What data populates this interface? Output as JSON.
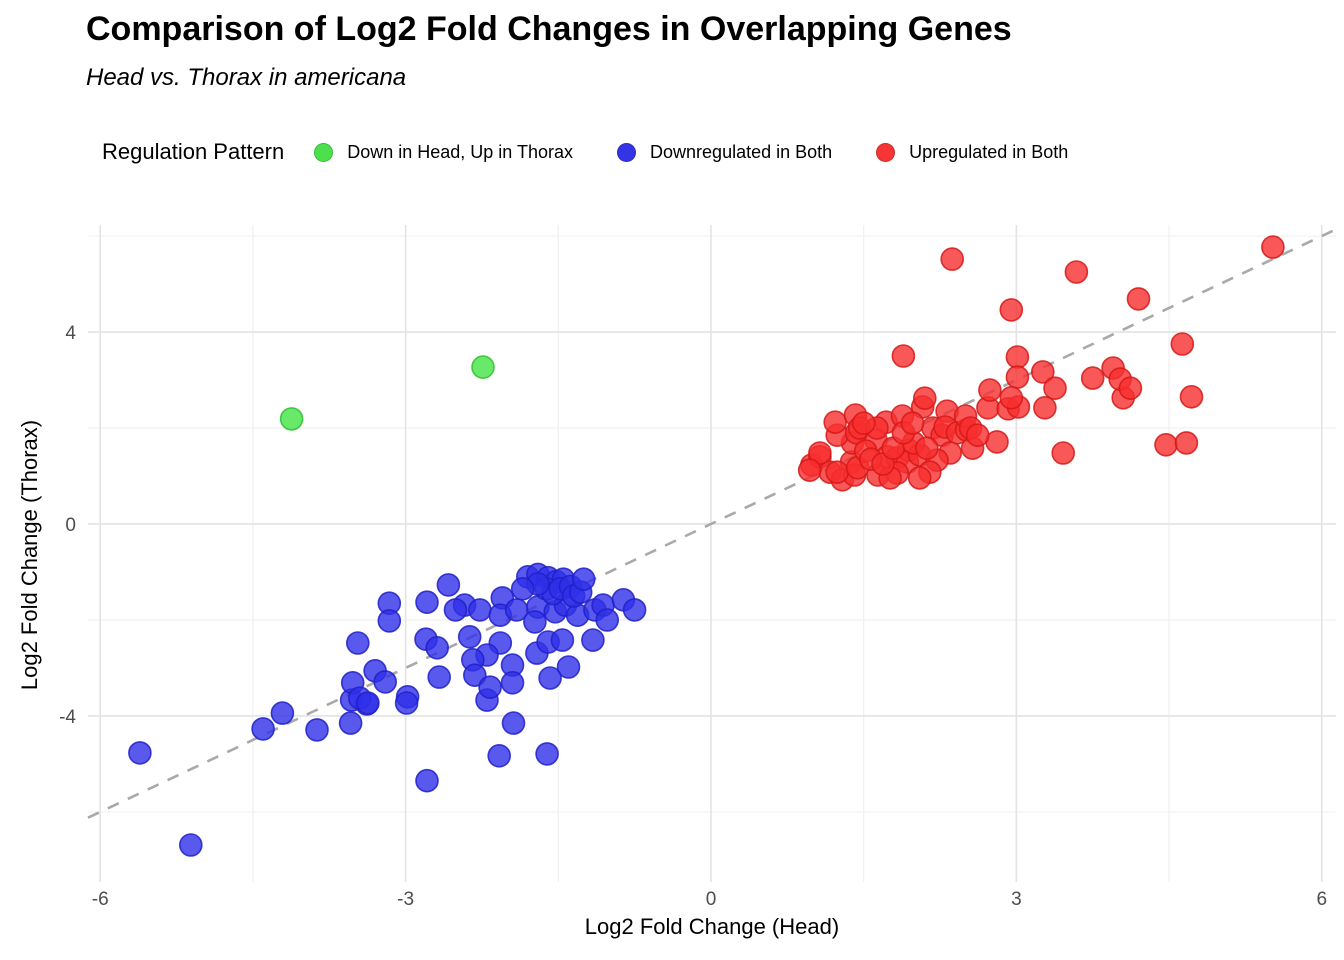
{
  "header": {
    "title": "Comparison of Log2 Fold Changes in Overlapping Genes",
    "subtitle": "Head vs. Thorax in americana"
  },
  "legend": {
    "title": "Regulation Pattern",
    "items": [
      {
        "label": "Down in Head, Up in Thorax",
        "color": "#4ce14c"
      },
      {
        "label": "Downregulated in Both",
        "color": "#3434e6"
      },
      {
        "label": "Upregulated in Both",
        "color": "#f73535"
      }
    ]
  },
  "chart_data": {
    "type": "scatter",
    "title": "Comparison of Log2 Fold Changes in Overlapping Genes",
    "subtitle": "Head vs. Thorax in americana",
    "xlabel": "Log2 Fold Change (Head)",
    "ylabel": "Log2 Fold Change (Thorax)",
    "xlim": [
      -6.12,
      6.14
    ],
    "ylim": [
      -7.46,
      6.23
    ],
    "x_ticks": [
      -6,
      -3,
      0,
      3,
      6
    ],
    "y_ticks": [
      -4,
      0,
      4
    ],
    "x_minor_ticks": [
      -4.5,
      -1.5,
      1.5,
      4.5
    ],
    "y_minor_ticks": [
      -6,
      -2,
      2,
      6
    ],
    "grid": "major+minor",
    "grid_major_color": "#e3e3e3",
    "grid_minor_color": "#f0f0f0",
    "legend_position": "top",
    "reference_line": {
      "type": "identity y=x",
      "style": "dashed",
      "color": "#a9a9a9"
    },
    "series": [
      {
        "name": "Down in Head, Up in Thorax",
        "color": "#44e344",
        "stroke": "#2fbf2f",
        "points": [
          [
            -4.12,
            2.19
          ],
          [
            -2.24,
            3.27
          ]
        ]
      },
      {
        "name": "Downregulated in Both",
        "color": "#3030e8",
        "stroke": "#2020c8",
        "points": [
          [
            -5.61,
            -4.77
          ],
          [
            -5.11,
            -6.69
          ],
          [
            -4.4,
            -4.27
          ],
          [
            -4.21,
            -3.94
          ],
          [
            -3.87,
            -4.29
          ],
          [
            -3.54,
            -4.15
          ],
          [
            -3.53,
            -3.67
          ],
          [
            -3.38,
            -3.75
          ],
          [
            -3.16,
            -1.65
          ],
          [
            -3.16,
            -2.02
          ],
          [
            -2.79,
            -1.63
          ],
          [
            -3.47,
            -2.48
          ],
          [
            -2.8,
            -2.4
          ],
          [
            -2.69,
            -2.58
          ],
          [
            -3.3,
            -3.06
          ],
          [
            -3.52,
            -3.31
          ],
          [
            -3.2,
            -3.29
          ],
          [
            -3.45,
            -3.63
          ],
          [
            -3.37,
            -3.73
          ],
          [
            -2.98,
            -3.6
          ],
          [
            -2.67,
            -3.19
          ],
          [
            -2.99,
            -3.73
          ],
          [
            -2.2,
            -3.67
          ],
          [
            -1.94,
            -4.15
          ],
          [
            -2.08,
            -4.83
          ],
          [
            -1.61,
            -4.79
          ],
          [
            -2.79,
            -5.35
          ],
          [
            -2.42,
            -1.69
          ],
          [
            -2.27,
            -1.79
          ],
          [
            -2.05,
            -1.54
          ],
          [
            -2.07,
            -1.9
          ],
          [
            -1.91,
            -1.79
          ],
          [
            -1.7,
            -1.73
          ],
          [
            -1.73,
            -2.04
          ],
          [
            -1.53,
            -1.83
          ],
          [
            -1.43,
            -1.69
          ],
          [
            -1.31,
            -1.9
          ],
          [
            -1.14,
            -1.79
          ],
          [
            -1.06,
            -1.69
          ],
          [
            -1.02,
            -2.0
          ],
          [
            -0.86,
            -1.58
          ],
          [
            -0.75,
            -1.79
          ],
          [
            -2.37,
            -2.35
          ],
          [
            -2.07,
            -2.48
          ],
          [
            -2.2,
            -2.73
          ],
          [
            -2.34,
            -2.83
          ],
          [
            -2.32,
            -3.15
          ],
          [
            -2.17,
            -3.4
          ],
          [
            -1.95,
            -2.94
          ],
          [
            -1.95,
            -3.31
          ],
          [
            -1.71,
            -2.69
          ],
          [
            -1.6,
            -2.46
          ],
          [
            -1.46,
            -2.42
          ],
          [
            -1.4,
            -2.98
          ],
          [
            -1.58,
            -3.21
          ],
          [
            -1.16,
            -2.42
          ],
          [
            -1.8,
            -1.1
          ],
          [
            -1.7,
            -1.05
          ],
          [
            -1.6,
            -1.12
          ],
          [
            -1.52,
            -1.2
          ],
          [
            -1.45,
            -1.15
          ],
          [
            -1.62,
            -1.35
          ],
          [
            -1.55,
            -1.45
          ],
          [
            -1.48,
            -1.35
          ],
          [
            -1.38,
            -1.3
          ],
          [
            -1.35,
            -1.5
          ],
          [
            -1.28,
            -1.42
          ],
          [
            -1.7,
            -1.25
          ],
          [
            -1.85,
            -1.35
          ],
          [
            -1.25,
            -1.15
          ],
          [
            -2.58,
            -1.27
          ],
          [
            -2.51,
            -1.79
          ]
        ]
      },
      {
        "name": "Upregulated in Both",
        "color": "#f72e2e",
        "stroke": "#d51818",
        "points": [
          [
            0.99,
            1.23
          ],
          [
            1.07,
            1.4
          ],
          [
            1.17,
            1.08
          ],
          [
            1.29,
            0.92
          ],
          [
            1.38,
            1.29
          ],
          [
            1.41,
            1.02
          ],
          [
            1.39,
            1.69
          ],
          [
            1.24,
            1.85
          ],
          [
            1.43,
            1.9
          ],
          [
            1.22,
            2.12
          ],
          [
            1.42,
            2.27
          ],
          [
            1.46,
            2.0
          ],
          [
            1.72,
            2.12
          ],
          [
            1.88,
            2.25
          ],
          [
            2.08,
            2.44
          ],
          [
            2.32,
            2.35
          ],
          [
            1.62,
            1.75
          ],
          [
            1.07,
            1.48
          ],
          [
            0.97,
            1.12
          ],
          [
            1.24,
            1.08
          ],
          [
            1.44,
            1.17
          ],
          [
            1.64,
            1.02
          ],
          [
            1.73,
            1.4
          ],
          [
            1.83,
            1.38
          ],
          [
            1.94,
            1.54
          ],
          [
            1.93,
            1.29
          ],
          [
            2.05,
            1.44
          ],
          [
            2.18,
            2.0
          ],
          [
            2.27,
            1.85
          ],
          [
            2.3,
            2.02
          ],
          [
            2.42,
            1.9
          ],
          [
            2.51,
            1.96
          ],
          [
            2.35,
            1.48
          ],
          [
            2.22,
            1.33
          ],
          [
            2.15,
            1.08
          ],
          [
            2.05,
            0.96
          ],
          [
            1.83,
            1.06
          ],
          [
            1.76,
            0.96
          ],
          [
            1.63,
            2.0
          ],
          [
            2.72,
            2.42
          ],
          [
            2.92,
            2.4
          ],
          [
            3.02,
            2.44
          ],
          [
            3.28,
            2.42
          ],
          [
            4.05,
            2.63
          ],
          [
            2.81,
            1.71
          ],
          [
            2.57,
            1.58
          ],
          [
            3.46,
            1.48
          ],
          [
            2.5,
            2.25
          ],
          [
            2.55,
            2.0
          ],
          [
            2.62,
            1.85
          ],
          [
            2.37,
            5.52
          ],
          [
            3.59,
            5.25
          ],
          [
            2.95,
            4.46
          ],
          [
            4.2,
            4.69
          ],
          [
            1.89,
            3.5
          ],
          [
            3.01,
            3.48
          ],
          [
            3.01,
            3.06
          ],
          [
            3.26,
            3.17
          ],
          [
            3.38,
            2.83
          ],
          [
            3.95,
            3.25
          ],
          [
            4.02,
            3.02
          ],
          [
            3.75,
            3.04
          ],
          [
            2.74,
            2.79
          ],
          [
            2.1,
            2.62
          ],
          [
            2.95,
            2.63
          ],
          [
            5.52,
            5.77
          ],
          [
            4.63,
            3.75
          ],
          [
            4.12,
            2.83
          ],
          [
            4.72,
            2.65
          ],
          [
            4.47,
            1.65
          ],
          [
            4.67,
            1.69
          ],
          [
            1.52,
            1.52
          ],
          [
            1.57,
            1.35
          ],
          [
            1.69,
            1.25
          ],
          [
            1.79,
            1.58
          ],
          [
            1.99,
            1.69
          ],
          [
            2.12,
            1.58
          ],
          [
            1.89,
            1.9
          ],
          [
            1.98,
            2.1
          ],
          [
            1.5,
            2.1
          ]
        ]
      }
    ]
  }
}
